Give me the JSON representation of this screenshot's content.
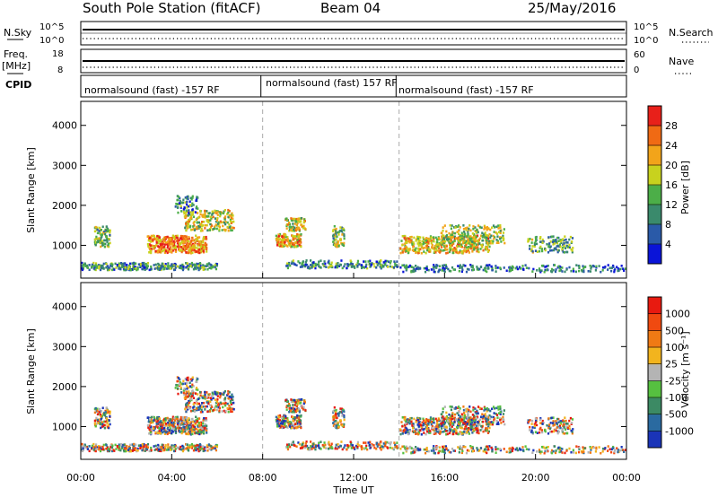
{
  "header": {
    "station": "South Pole Station (fitACF)",
    "beam": "Beam 04",
    "date": "25/May/2016"
  },
  "panels": {
    "nsky_label": "N.Sky",
    "nsky_ticks": [
      "10^5",
      "10^0"
    ],
    "nsearch_label": "N.Search",
    "nsearch_ticks": [
      "10^5",
      "10^0"
    ],
    "freq_label_1": "Freq.",
    "freq_label_2": "[MHz]",
    "freq_ticks": [
      "18",
      "8"
    ],
    "nave_label": "Nave",
    "nave_ticks": [
      "60",
      "0"
    ],
    "cpid_label": "CPID",
    "cpid_segments": [
      {
        "text": "normalsound (fast) -157 RF",
        "start_hour": 0
      },
      {
        "text": "normalsound (fast) 157 RF",
        "start_hour": 8
      },
      {
        "text": "normalsound (fast) -157 RF",
        "start_hour": 14
      }
    ]
  },
  "chart_data": [
    {
      "type": "heatmap",
      "name": "power",
      "ylabel": "Slant Range [km]",
      "xlim": [
        0,
        24
      ],
      "ylim": [
        180,
        4600
      ],
      "yticks": [
        "1000",
        "2000",
        "3000",
        "4000"
      ],
      "colorbar_label": "Power [dB]",
      "colorbar_ticks": [
        "4",
        "8",
        "12",
        "16",
        "20",
        "24",
        "28"
      ],
      "colors": [
        "#0a14d8",
        "#2a5aa8",
        "#3a8a6c",
        "#4cae48",
        "#c8d21e",
        "#f2a41a",
        "#f06a14",
        "#e8201a"
      ],
      "dashed_lines_hours": [
        8,
        14
      ]
    },
    {
      "type": "heatmap",
      "name": "velocity",
      "ylabel": "Slant Range [km]",
      "xlim": [
        0,
        24
      ],
      "ylim": [
        180,
        4600
      ],
      "yticks": [
        "1000",
        "2000",
        "3000",
        "4000"
      ],
      "colorbar_label": "Velocity [m s⁻¹]",
      "colorbar_ticks": [
        "1000",
        "500",
        "100",
        "25",
        "-25",
        "-100",
        "-500",
        "-1000"
      ],
      "colors": [
        "#1a34b8",
        "#2a6aa0",
        "#3c8a64",
        "#56c040",
        "#b4b4b4",
        "#f2b41e",
        "#f07a14",
        "#f04a10",
        "#e81a10"
      ],
      "xlabel": "Time UT",
      "xticks": [
        "00:00",
        "04:00",
        "08:00",
        "12:00",
        "16:00",
        "20:00",
        "00:00"
      ],
      "dashed_lines_hours": [
        8,
        14
      ]
    }
  ]
}
